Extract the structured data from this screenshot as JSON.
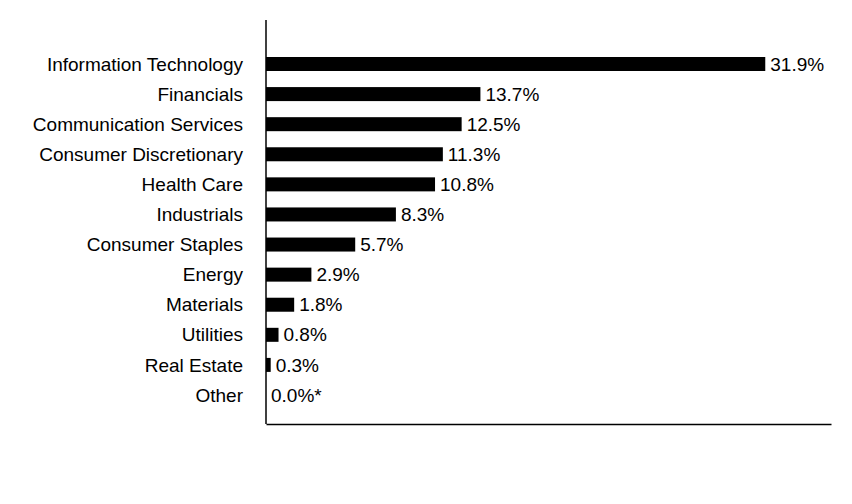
{
  "chart_data": {
    "type": "bar",
    "orientation": "horizontal",
    "categories": [
      "Information Technology",
      "Financials",
      "Communication Services",
      "Consumer Discretionary",
      "Health Care",
      "Industrials",
      "Consumer Staples",
      "Energy",
      "Materials",
      "Utilities",
      "Real Estate",
      "Other"
    ],
    "values": [
      31.9,
      13.7,
      12.5,
      11.3,
      10.8,
      8.3,
      5.7,
      2.9,
      1.8,
      0.8,
      0.3,
      0.0
    ],
    "value_labels": [
      "31.9%",
      "13.7%",
      "12.5%",
      "11.3%",
      "10.8%",
      "8.3%",
      "5.7%",
      "2.9%",
      "1.8%",
      "0.8%",
      "0.3%",
      "0.0%*"
    ],
    "color": "#000000",
    "xlim": [
      0,
      36.1
    ],
    "data_labels": true,
    "tick_labels": "y",
    "grid": false
  }
}
